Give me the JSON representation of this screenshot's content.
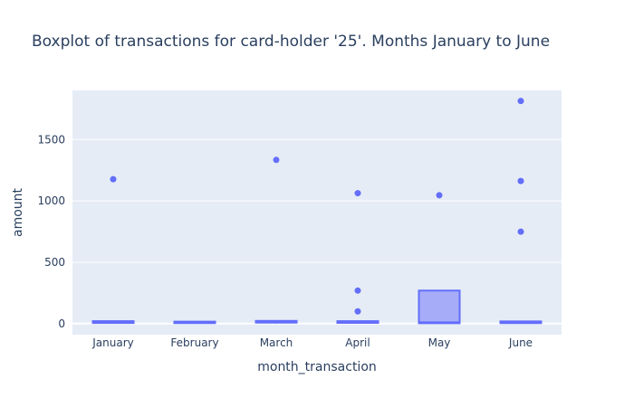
{
  "chart_data": {
    "type": "box",
    "title": "Boxplot of transactions for card-holder '25'. Months January to June",
    "xlabel": "month_transaction",
    "ylabel": "amount",
    "ylim": [
      -90,
      1900
    ],
    "yticks": [
      0,
      500,
      1000,
      1500
    ],
    "yticklabels": [
      "0",
      "500",
      "1000",
      "1500"
    ],
    "grid": true,
    "legend": "none",
    "colors": {
      "plot_bg": "#e5ecf6",
      "grid": "#ffffff",
      "box_line": "#636efa",
      "box_fill": "#a6acf8",
      "outlier": "#636efa",
      "text": "#2a3f5f"
    },
    "categories": [
      "January",
      "February",
      "March",
      "April",
      "May",
      "June"
    ],
    "boxes": [
      {
        "category": "January",
        "min": 1,
        "q1": 5,
        "median": 12,
        "q3": 20,
        "max": 22,
        "outliers": [
          1177
        ]
      },
      {
        "category": "February",
        "min": 1,
        "q1": 4,
        "median": 9,
        "q3": 16,
        "max": 18,
        "outliers": []
      },
      {
        "category": "March",
        "min": 1,
        "q1": 8,
        "median": 15,
        "q3": 22,
        "max": 26,
        "outliers": [
          1334
        ]
      },
      {
        "category": "April",
        "min": 1,
        "q1": 6,
        "median": 14,
        "q3": 20,
        "max": 24,
        "outliers": [
          100,
          269,
          1063
        ]
      },
      {
        "category": "May",
        "min": 1,
        "q1": 3,
        "median": 10,
        "q3": 269,
        "max": 272,
        "outliers": [
          1046
        ]
      },
      {
        "category": "June",
        "min": 1,
        "q1": 4,
        "median": 12,
        "q3": 18,
        "max": 22,
        "outliers": [
          749,
          1162,
          1814
        ]
      }
    ]
  }
}
